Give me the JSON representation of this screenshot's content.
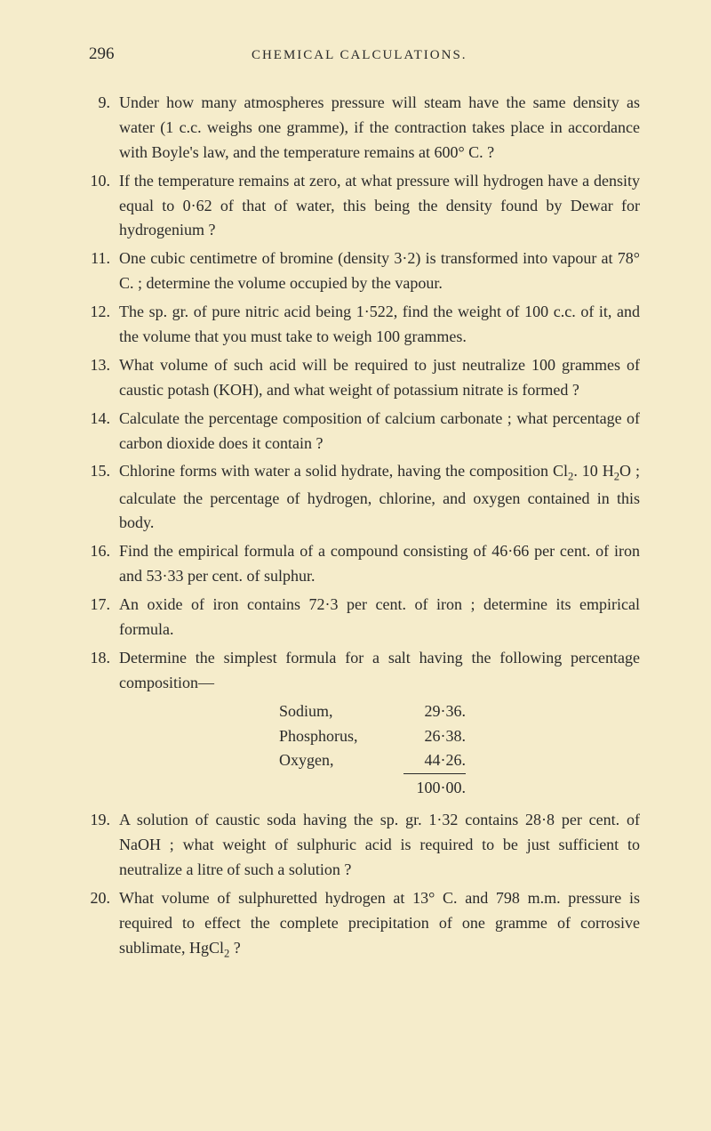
{
  "page_number": "296",
  "chapter_title": "CHEMICAL CALCULATIONS.",
  "questions": {
    "q9": {
      "num": "9.",
      "text": "Under how many atmospheres pressure will steam have the same density as water (1 c.c. weighs one gramme), if the contraction takes place in accordance with Boyle's law, and the temperature remains at 600° C. ?"
    },
    "q10": {
      "num": "10.",
      "text": "If the temperature remains at zero, at what pressure will hydrogen have a density equal to 0·62 of that of water, this being the density found by Dewar for hydrogenium ?"
    },
    "q11": {
      "num": "11.",
      "text": "One cubic centimetre of bromine (density 3·2) is transformed into vapour at 78° C. ; determine the volume occupied by the vapour."
    },
    "q12": {
      "num": "12.",
      "text": "The sp. gr. of pure nitric acid being 1·522, find the weight of 100 c.c. of it, and the volume that you must take to weigh 100 grammes."
    },
    "q13": {
      "num": "13.",
      "text": "What volume of such acid will be required to just neutralize 100 grammes of caustic potash (KOH), and what weight of potassium nitrate is formed ?"
    },
    "q14": {
      "num": "14.",
      "text": "Calculate the percentage composition of calcium carbonate ; what percentage of carbon dioxide does it contain ?"
    },
    "q15": {
      "num": "15.",
      "text_before": "Chlorine forms with water a solid hydrate, having the composition Cl",
      "sub1": "2",
      "text_mid1": ". 10 H",
      "sub2": "2",
      "text_after": "O ; calculate the percentage of hydrogen, chlorine, and oxygen contained in this body."
    },
    "q16": {
      "num": "16.",
      "text": "Find the empirical formula of a compound consisting of 46·66 per cent. of iron and 53·33 per cent. of sulphur."
    },
    "q17": {
      "num": "17.",
      "text": "An oxide of iron contains 72·3 per cent. of iron ; determine its empirical formula."
    },
    "q18": {
      "num": "18.",
      "text": "Determine the simplest formula for a salt having the following percentage composition—",
      "composition": {
        "sodium_label": "Sodium,",
        "sodium_value": "29·36.",
        "phosphorus_label": "Phosphorus,",
        "phosphorus_value": "26·38.",
        "oxygen_label": "Oxygen,",
        "oxygen_value": "44·26.",
        "total": "100·00."
      }
    },
    "q19": {
      "num": "19.",
      "text": "A solution of caustic soda having the sp. gr. 1·32 contains 28·8 per cent. of NaOH ; what weight of sulphuric acid is required to be just sufficient to neutralize a litre of such a solution ?"
    },
    "q20": {
      "num": "20.",
      "text_before": "What volume of sulphuretted hydrogen at 13° C. and 798 m.m. pressure is required to effect the complete precipitation of one gramme of corrosive sublimate, HgCl",
      "sub1": "2",
      "text_after": " ?"
    }
  }
}
